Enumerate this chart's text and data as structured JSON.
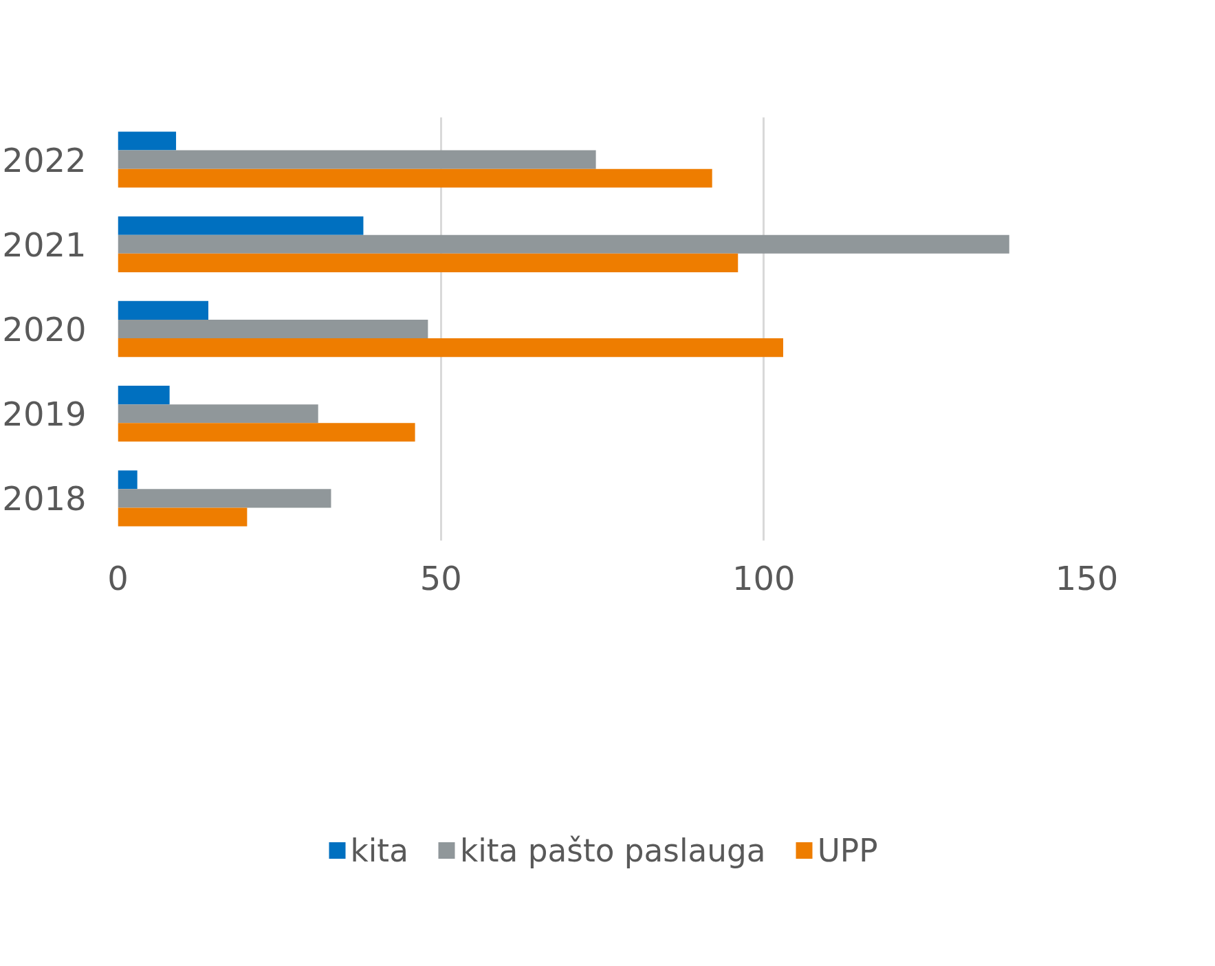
{
  "chart_data": {
    "type": "bar",
    "orientation": "horizontal",
    "categories": [
      "2022",
      "2021",
      "2020",
      "2019",
      "2018"
    ],
    "series": [
      {
        "name": "kita",
        "color": "#0070c0",
        "values": [
          9,
          38,
          14,
          8,
          3
        ]
      },
      {
        "name": "kita pašto paslauga",
        "color": "#90979a",
        "values": [
          74,
          138,
          48,
          31,
          33
        ]
      },
      {
        "name": "UPP",
        "color": "#ee7d00",
        "values": [
          92,
          96,
          103,
          46,
          20
        ]
      }
    ],
    "xlim": [
      0,
      150
    ],
    "xticks": [
      0,
      50,
      100,
      150
    ],
    "grid": "x",
    "legend": "bottom"
  }
}
